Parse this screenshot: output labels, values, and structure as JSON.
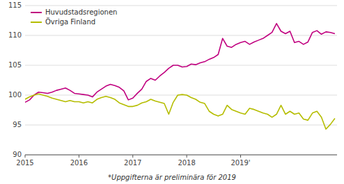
{
  "chart_data": {
    "type": "line",
    "annotations": [
      "*Uppgifterna är preliminära för 2019"
    ],
    "x": [
      2015.0,
      2015.0833333333333,
      2015.1666666666667,
      2015.25,
      2015.3333333333333,
      2015.4166666666667,
      2015.5,
      2015.5833333333333,
      2015.6666666666667,
      2015.75,
      2015.8333333333333,
      2015.9166666666667,
      2016.0,
      2016.0833333333333,
      2016.1666666666667,
      2016.25,
      2016.3333333333333,
      2016.4166666666667,
      2016.5,
      2016.5833333333333,
      2016.6666666666667,
      2016.75,
      2016.8333333333333,
      2016.9166666666667,
      2017.0,
      2017.0833333333333,
      2017.1666666666667,
      2017.25,
      2017.3333333333333,
      2017.4166666666667,
      2017.5,
      2017.5833333333333,
      2017.6666666666667,
      2017.75,
      2017.8333333333333,
      2017.9166666666667,
      2018.0,
      2018.0833333333333,
      2018.1666666666667,
      2018.25,
      2018.3333333333333,
      2018.4166666666667,
      2018.5,
      2018.5833333333333,
      2018.6666666666667,
      2018.75,
      2018.8333333333333,
      2018.9166666666667,
      2019.0,
      2019.0833333333333,
      2019.1666666666667,
      2019.25,
      2019.3333333333333,
      2019.4166666666667,
      2019.5,
      2019.5833333333333,
      2019.6666666666667,
      2019.75,
      2019.8333333333333,
      2019.9166666666667,
      2020.0,
      2020.0833333333333,
      2020.1666666666667,
      2020.25,
      2020.3333333333333,
      2020.4166666666667,
      2020.5,
      2020.5833333333333,
      2020.6666666666667,
      2020.75
    ],
    "series": [
      {
        "name": "Huvudstadsregionen",
        "color": "#c0007f",
        "values": [
          98.8,
          99.2,
          100.0,
          100.5,
          100.4,
          100.3,
          100.5,
          100.8,
          101.0,
          101.2,
          100.8,
          100.3,
          100.2,
          100.1,
          100.0,
          99.7,
          100.5,
          101.0,
          101.5,
          101.8,
          101.6,
          101.3,
          100.7,
          99.2,
          99.5,
          100.3,
          101.0,
          102.3,
          102.8,
          102.5,
          103.2,
          103.8,
          104.5,
          105.0,
          105.0,
          104.7,
          104.8,
          105.2,
          105.1,
          105.4,
          105.6,
          106.0,
          106.3,
          106.8,
          109.5,
          108.2,
          108.0,
          108.5,
          108.8,
          109.0,
          108.5,
          108.9,
          109.2,
          109.5,
          110.0,
          110.5,
          112.0,
          110.7,
          110.3,
          110.7,
          108.8,
          109.0,
          108.5,
          108.9,
          110.5,
          110.8,
          110.2,
          110.6,
          110.5,
          110.3
        ]
      },
      {
        "name": "Övriga Finland",
        "color": "#b5bd00",
        "values": [
          99.3,
          99.7,
          100.0,
          100.2,
          100.0,
          99.8,
          99.5,
          99.3,
          99.1,
          98.9,
          99.1,
          98.9,
          98.9,
          98.7,
          98.9,
          98.7,
          99.3,
          99.6,
          99.8,
          99.6,
          99.3,
          98.7,
          98.4,
          98.1,
          98.1,
          98.3,
          98.7,
          98.9,
          99.3,
          99.0,
          98.8,
          98.6,
          96.8,
          98.8,
          100.0,
          100.1,
          100.0,
          99.6,
          99.3,
          98.8,
          98.6,
          97.3,
          96.8,
          96.5,
          96.8,
          98.3,
          97.6,
          97.3,
          97.0,
          96.8,
          97.8,
          97.6,
          97.3,
          97.0,
          96.8,
          96.3,
          96.8,
          98.3,
          96.8,
          97.3,
          96.8,
          97.0,
          96.0,
          95.8,
          97.0,
          97.3,
          96.3,
          94.3,
          95.1,
          96.1
        ]
      }
    ],
    "xlim": [
      2015.0,
      2020.79
    ],
    "xticks": [
      {
        "value": 2015,
        "label": "2015"
      },
      {
        "value": 2016,
        "label": "2016"
      },
      {
        "value": 2017,
        "label": "2017"
      },
      {
        "value": 2018,
        "label": "2018"
      },
      {
        "value": 2019,
        "label": "2019'"
      }
    ],
    "ylim": [
      90,
      115
    ],
    "yticks": [
      90,
      95,
      100,
      105,
      110,
      115
    ],
    "grid": true,
    "legend": "upper left"
  }
}
